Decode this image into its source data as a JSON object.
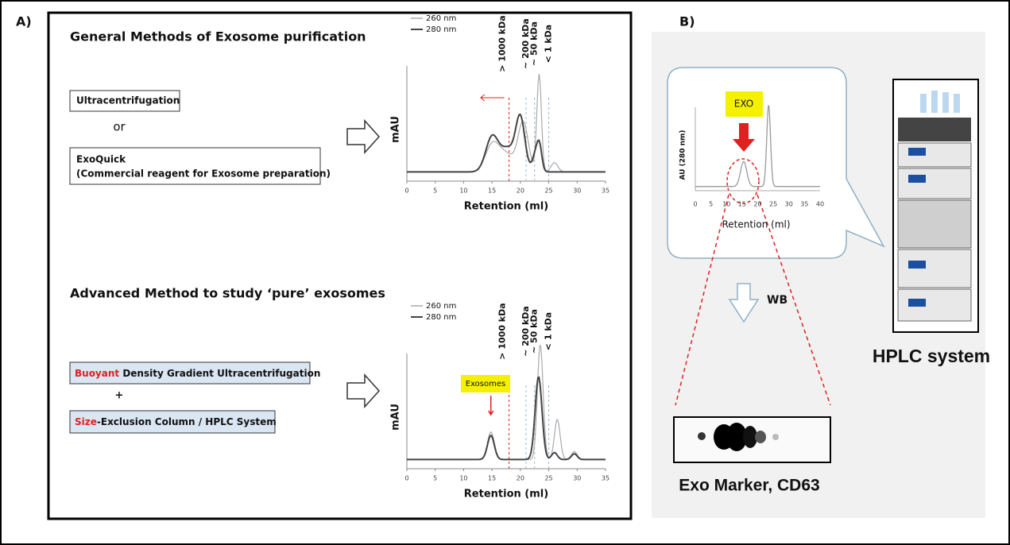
{
  "panel_a": {
    "label": "A)",
    "general": {
      "title": "General Methods of Exosome purification",
      "box1": "Ultracentrifugation",
      "or": "or",
      "box2_line1": "ExoQuick",
      "box2_line2": "(Commercial reagent for Exosome preparation)"
    },
    "advanced": {
      "title": "Advanced Method to study ‘pure’ exosomes",
      "box1_highlight": "Buoyant",
      "box1_rest": " Density Gradient Ultracentrifugation",
      "plus": "+",
      "box2_highlight": "Size",
      "box2_rest": "-Exclusion Column / HPLC System",
      "exosomes": "Exosomes"
    },
    "chromatogram": {
      "legend": [
        "260 nm",
        "280 nm"
      ],
      "markers": [
        "> 1000 kDa",
        "~ 200 kDa",
        "~ 50 kDa",
        "< 1 kDa"
      ],
      "ylabel": "mAU",
      "xlabel": "Retention (ml)",
      "xticks": [
        0,
        5,
        10,
        15,
        20,
        25,
        30,
        35
      ]
    }
  },
  "panel_b": {
    "label": "B)",
    "exo": "EXO",
    "ylabel": "AU (280 nm)",
    "xlabel": "Retention (ml)",
    "xticks": [
      0,
      5,
      10,
      15,
      20,
      25,
      30,
      35,
      40
    ],
    "wb": "WB",
    "marker": "Exo Marker, CD63",
    "hplc": "HPLC system"
  }
}
